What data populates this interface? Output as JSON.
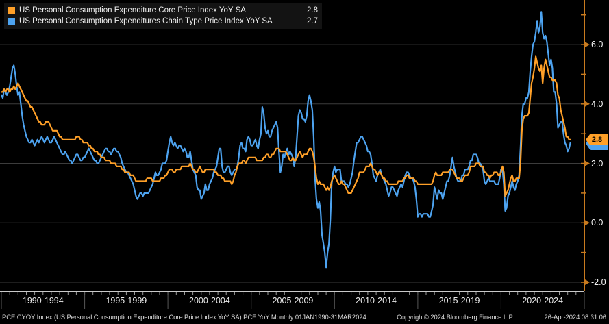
{
  "legend": {
    "items": [
      {
        "label": "US Personal Consumption Expenditure Core Price Index YoY SA",
        "value": "2.8",
        "color": "#FFA028"
      },
      {
        "label": "US Personal Consumption Expenditures Chain Type Price Index YoY SA",
        "value": "2.7",
        "color": "#4DA3F0"
      }
    ]
  },
  "footer": {
    "left": "PCE CYOY Index (US Personal Consumption Expenditure Core Price Index YoY SA) PCE YoY  Monthly 01JAN1990-31MAR2024",
    "center": "Copyright© 2024 Bloomberg Finance L.P.",
    "right": "26-Apr-2024 08:31:06"
  },
  "chart_data": {
    "type": "line",
    "x_unit": "month",
    "x_start": "JAN1990",
    "x_end": "MAR2024",
    "x_band_labels": [
      "1990-1994",
      "1995-1999",
      "2000-2004",
      "2005-2009",
      "2010-2014",
      "2015-2019",
      "2020-2024"
    ],
    "y_ticks": [
      {
        "value": 6.0,
        "label": "6.0"
      },
      {
        "value": 4.0,
        "label": "4.0"
      },
      {
        "value": 2.0,
        "label": "2.0"
      },
      {
        "value": 0.0,
        "label": "0.0"
      },
      {
        "value": -2.0,
        "label": "-2.0"
      }
    ],
    "ylim": [
      -2.3,
      7.5
    ],
    "grid": "horizontal",
    "legend_position": "top-left",
    "colors": {
      "background": "#000000",
      "grid": "#3C3C3C",
      "x_axis": "#C9C9C9",
      "x_tick": "#9A9A9A",
      "band_divider": "#585858",
      "y_axis": "#C87A1E",
      "badge_text": "#000000"
    },
    "series": [
      {
        "name": "US Personal Consumption Expenditure Core Price Index YoY SA",
        "color": "#FFA028",
        "last_value_label": "2.8",
        "values": [
          4.4,
          4.4,
          4.5,
          4.4,
          4.5,
          4.5,
          4.4,
          4.5,
          4.5,
          4.6,
          4.5,
          4.6,
          4.7,
          4.6,
          4.5,
          4.4,
          4.3,
          4.2,
          4.1,
          4.1,
          4.0,
          3.9,
          3.9,
          3.8,
          3.7,
          3.6,
          3.5,
          3.4,
          3.4,
          3.3,
          3.3,
          3.3,
          3.4,
          3.4,
          3.4,
          3.3,
          3.2,
          3.1,
          3.1,
          3.1,
          3.1,
          3.0,
          2.9,
          2.9,
          2.8,
          2.8,
          2.8,
          2.8,
          2.8,
          2.8,
          2.8,
          2.8,
          2.8,
          2.8,
          2.9,
          2.9,
          2.9,
          2.8,
          2.8,
          2.7,
          2.7,
          2.7,
          2.7,
          2.6,
          2.6,
          2.5,
          2.5,
          2.4,
          2.4,
          2.4,
          2.3,
          2.3,
          2.2,
          2.2,
          2.2,
          2.1,
          2.1,
          2.1,
          2.1,
          2.0,
          2.0,
          2.0,
          2.0,
          1.9,
          1.9,
          1.9,
          1.9,
          1.8,
          1.8,
          1.7,
          1.7,
          1.7,
          1.7,
          1.6,
          1.6,
          1.6,
          1.5,
          1.4,
          1.4,
          1.4,
          1.4,
          1.4,
          1.4,
          1.4,
          1.4,
          1.5,
          1.5,
          1.5,
          1.5,
          1.4,
          1.4,
          1.4,
          1.4,
          1.4,
          1.4,
          1.5,
          1.5,
          1.5,
          1.6,
          1.6,
          1.7,
          1.8,
          1.8,
          1.8,
          1.7,
          1.7,
          1.8,
          1.8,
          1.8,
          1.8,
          1.9,
          1.9,
          1.9,
          1.9,
          1.9,
          1.9,
          2.0,
          1.9,
          1.8,
          1.8,
          1.7,
          1.7,
          1.8,
          1.9,
          1.8,
          1.7,
          1.7,
          1.8,
          1.8,
          1.8,
          1.8,
          1.8,
          1.8,
          1.8,
          1.7,
          1.7,
          1.6,
          1.6,
          1.6,
          1.5,
          1.5,
          1.4,
          1.4,
          1.4,
          1.4,
          1.4,
          1.3,
          1.4,
          1.6,
          1.7,
          1.9,
          2.0,
          2.0,
          2.0,
          2.1,
          2.1,
          2.0,
          2.1,
          2.2,
          2.2,
          2.2,
          2.2,
          2.2,
          2.2,
          2.1,
          2.1,
          2.1,
          2.1,
          2.1,
          2.2,
          2.2,
          2.3,
          2.3,
          2.2,
          2.2,
          2.3,
          2.3,
          2.4,
          2.5,
          2.5,
          2.5,
          2.4,
          2.4,
          2.4,
          2.4,
          2.4,
          2.3,
          2.2,
          2.1,
          2.1,
          2.2,
          2.1,
          2.1,
          2.2,
          2.3,
          2.4,
          2.3,
          2.2,
          2.3,
          2.3,
          2.3,
          2.4,
          2.5,
          2.5,
          2.4,
          2.2,
          1.9,
          1.5,
          1.3,
          1.4,
          1.3,
          1.3,
          1.3,
          1.2,
          1.1,
          1.2,
          1.1,
          1.2,
          1.4,
          1.5,
          1.6,
          1.5,
          1.4,
          1.3,
          1.3,
          1.4,
          1.3,
          1.3,
          1.2,
          1.1,
          1.0,
          1.0,
          1.0,
          1.1,
          1.2,
          1.3,
          1.4,
          1.5,
          1.7,
          1.7,
          1.7,
          1.7,
          1.8,
          1.9,
          1.9,
          1.9,
          2.0,
          1.9,
          1.8,
          1.8,
          1.7,
          1.6,
          1.7,
          1.7,
          1.6,
          1.5,
          1.5,
          1.4,
          1.4,
          1.3,
          1.3,
          1.3,
          1.3,
          1.3,
          1.3,
          1.3,
          1.4,
          1.4,
          1.4,
          1.4,
          1.5,
          1.5,
          1.6,
          1.6,
          1.5,
          1.5,
          1.5,
          1.5,
          1.4,
          1.4,
          1.3,
          1.3,
          1.3,
          1.3,
          1.3,
          1.3,
          1.3,
          1.3,
          1.3,
          1.3,
          1.3,
          1.4,
          1.6,
          1.7,
          1.6,
          1.6,
          1.6,
          1.6,
          1.7,
          1.7,
          1.7,
          1.7,
          1.7,
          1.8,
          1.8,
          1.8,
          1.7,
          1.6,
          1.5,
          1.5,
          1.5,
          1.4,
          1.4,
          1.5,
          1.6,
          1.6,
          1.6,
          1.7,
          1.9,
          1.9,
          1.9,
          1.9,
          2.0,
          2.0,
          2.0,
          1.9,
          1.9,
          1.9,
          1.7,
          1.7,
          1.6,
          1.6,
          1.5,
          1.6,
          1.6,
          1.7,
          1.7,
          1.7,
          1.6,
          1.6,
          1.7,
          1.9,
          1.7,
          0.9,
          1.0,
          1.1,
          1.3,
          1.5,
          1.6,
          1.4,
          1.4,
          1.5,
          1.5,
          1.5,
          2.0,
          3.1,
          3.5,
          3.6,
          3.6,
          3.6,
          3.7,
          4.2,
          4.7,
          4.9,
          5.2,
          5.6,
          5.4,
          5.2,
          5.1,
          5.3,
          4.7,
          5.2,
          5.5,
          5.3,
          5.1,
          4.9,
          4.9,
          4.8,
          4.8,
          4.8,
          4.7,
          4.3,
          4.2,
          3.8,
          3.6,
          3.4,
          3.2,
          2.9,
          2.9,
          2.8,
          2.8
        ]
      },
      {
        "name": "US Personal Consumption Expenditures Chain Type Price Index YoY SA",
        "color": "#4DA3F0",
        "last_value_label": "2.7",
        "values": [
          4.3,
          4.2,
          4.5,
          4.4,
          4.3,
          4.4,
          4.6,
          4.9,
          5.2,
          5.3,
          5.0,
          4.6,
          4.3,
          4.4,
          4.0,
          3.6,
          3.3,
          3.1,
          2.9,
          2.8,
          2.7,
          2.7,
          2.8,
          2.7,
          2.6,
          2.7,
          2.8,
          2.7,
          2.8,
          2.9,
          2.8,
          2.7,
          2.8,
          2.9,
          2.8,
          2.7,
          2.7,
          2.8,
          2.9,
          2.8,
          2.7,
          2.6,
          2.5,
          2.4,
          2.3,
          2.3,
          2.4,
          2.3,
          2.2,
          2.1,
          2.1,
          2.0,
          2.1,
          2.2,
          2.3,
          2.3,
          2.2,
          2.1,
          2.1,
          2.2,
          2.2,
          2.3,
          2.4,
          2.5,
          2.4,
          2.3,
          2.2,
          2.1,
          2.1,
          2.0,
          2.0,
          2.1,
          2.2,
          2.3,
          2.4,
          2.5,
          2.5,
          2.4,
          2.4,
          2.3,
          2.4,
          2.5,
          2.5,
          2.4,
          2.4,
          2.3,
          2.2,
          2.0,
          1.9,
          1.8,
          1.7,
          1.7,
          1.6,
          1.5,
          1.4,
          1.3,
          1.1,
          0.9,
          0.8,
          0.9,
          1.0,
          1.0,
          0.9,
          1.0,
          1.0,
          1.0,
          1.0,
          1.1,
          1.2,
          1.3,
          1.5,
          1.7,
          1.6,
          1.6,
          1.7,
          1.8,
          2.0,
          2.0,
          2.0,
          2.1,
          2.4,
          2.7,
          2.9,
          2.7,
          2.6,
          2.7,
          2.6,
          2.5,
          2.6,
          2.6,
          2.5,
          2.4,
          2.5,
          2.4,
          2.2,
          2.2,
          2.4,
          2.1,
          1.8,
          1.7,
          1.6,
          1.2,
          1.1,
          1.1,
          0.8,
          0.9,
          1.0,
          1.3,
          1.1,
          1.1,
          1.3,
          1.4,
          1.5,
          1.7,
          1.8,
          1.9,
          2.2,
          2.5,
          2.5,
          1.9,
          1.7,
          1.7,
          1.8,
          1.9,
          1.9,
          1.7,
          1.6,
          1.7,
          1.8,
          1.8,
          1.9,
          2.2,
          2.6,
          2.7,
          2.5,
          2.5,
          2.4,
          2.8,
          2.9,
          2.8,
          2.6,
          2.6,
          2.7,
          2.8,
          2.6,
          2.5,
          2.8,
          3.0,
          3.9,
          3.7,
          3.2,
          3.0,
          3.1,
          2.9,
          2.9,
          3.1,
          3.2,
          3.3,
          3.4,
          3.2,
          2.4,
          1.7,
          1.9,
          2.3,
          2.2,
          2.4,
          2.5,
          2.3,
          2.4,
          2.3,
          2.2,
          1.9,
          2.2,
          2.9,
          3.6,
          3.8,
          3.7,
          3.5,
          3.5,
          3.4,
          3.6,
          4.1,
          4.3,
          4.1,
          3.8,
          2.9,
          1.5,
          0.8,
          0.5,
          0.7,
          0.4,
          -0.4,
          -0.7,
          -1.0,
          -1.5,
          -1.0,
          -0.7,
          0.1,
          1.3,
          1.7,
          1.9,
          1.7,
          1.8,
          1.8,
          1.8,
          1.4,
          1.4,
          1.4,
          1.3,
          1.3,
          1.2,
          1.3,
          1.5,
          1.7,
          2.1,
          2.4,
          2.7,
          2.7,
          2.8,
          2.9,
          2.9,
          2.8,
          2.7,
          2.6,
          2.4,
          2.4,
          2.3,
          2.0,
          1.6,
          1.5,
          1.4,
          1.6,
          1.7,
          1.8,
          1.6,
          1.5,
          1.4,
          1.3,
          1.1,
          0.9,
          1.0,
          1.2,
          1.2,
          1.1,
          1.0,
          0.9,
          1.1,
          1.2,
          1.3,
          1.2,
          1.4,
          1.6,
          1.7,
          1.7,
          1.6,
          1.5,
          1.5,
          1.4,
          1.2,
          0.8,
          0.2,
          0.3,
          0.3,
          0.2,
          0.3,
          0.3,
          0.3,
          0.3,
          0.2,
          0.2,
          0.4,
          0.6,
          1.2,
          1.0,
          0.8,
          1.1,
          1.0,
          1.0,
          0.8,
          1.0,
          1.2,
          1.4,
          1.4,
          1.6,
          1.9,
          2.2,
          1.9,
          1.7,
          1.5,
          1.4,
          1.4,
          1.4,
          1.6,
          1.6,
          1.8,
          1.8,
          1.8,
          1.9,
          2.1,
          2.1,
          2.3,
          2.3,
          2.3,
          2.2,
          2.0,
          2.0,
          1.9,
          1.8,
          1.4,
          1.3,
          1.4,
          1.5,
          1.4,
          1.4,
          1.4,
          1.4,
          1.3,
          1.3,
          1.3,
          1.5,
          1.8,
          1.8,
          1.3,
          0.4,
          0.5,
          0.9,
          1.0,
          1.2,
          1.4,
          1.2,
          1.1,
          1.3,
          1.4,
          1.6,
          2.5,
          3.6,
          4.0,
          4.0,
          4.2,
          4.2,
          4.4,
          5.1,
          5.6,
          6.0,
          6.1,
          6.4,
          6.8,
          6.4,
          6.6,
          7.1,
          6.4,
          6.2,
          6.3,
          6.1,
          5.7,
          5.3,
          5.5,
          5.2,
          4.4,
          4.4,
          4.0,
          3.2,
          3.3,
          3.4,
          3.4,
          3.0,
          2.7,
          2.6,
          2.4,
          2.5,
          2.7
        ]
      }
    ]
  }
}
